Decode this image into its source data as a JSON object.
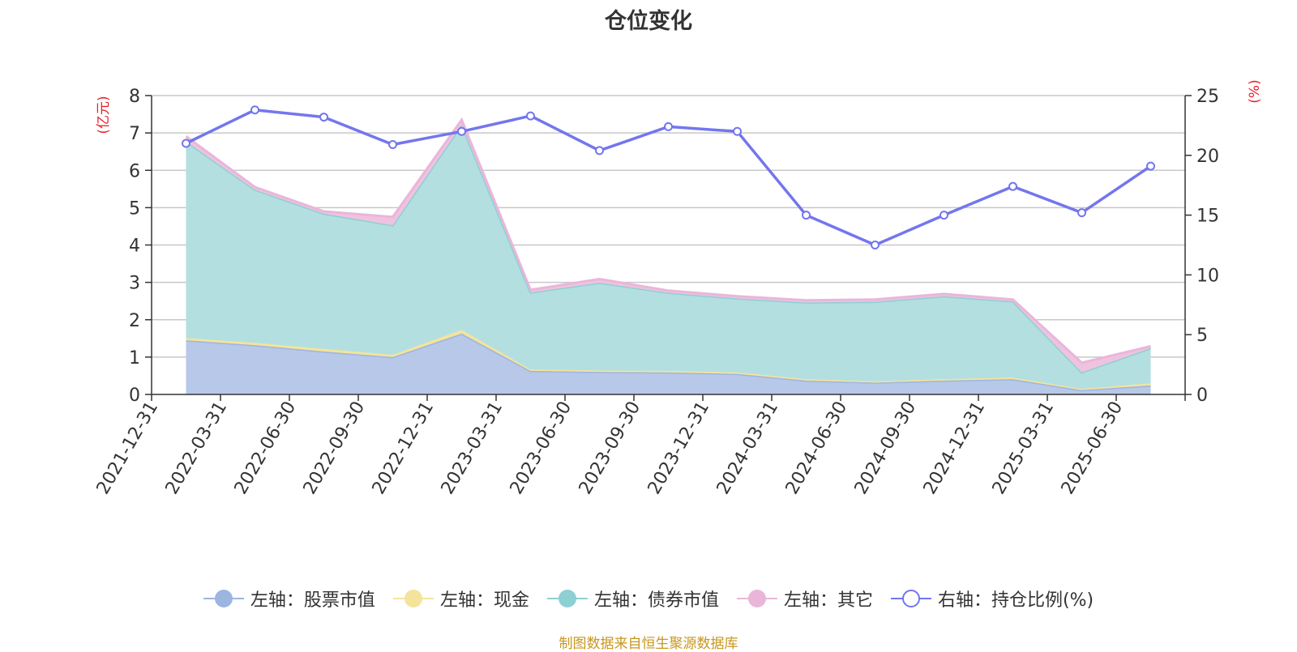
{
  "chart_data": {
    "type": "area",
    "title": "仓位变化",
    "source": "制图数据来自恒生聚源数据库",
    "left_axis": {
      "label": "(亿元)",
      "ylim": [
        0,
        8
      ],
      "ticks": [
        0,
        1,
        2,
        3,
        4,
        5,
        6,
        7,
        8
      ]
    },
    "right_axis": {
      "label": "(%)",
      "ylim": [
        0,
        25
      ],
      "ticks": [
        0,
        5,
        10,
        15,
        20,
        25
      ]
    },
    "categories": [
      "2021-12-31",
      "2022-03-31",
      "2022-06-30",
      "2022-09-30",
      "2022-12-31",
      "2023-03-31",
      "2023-06-30",
      "2023-09-30",
      "2023-12-31",
      "2024-03-31",
      "2024-06-30",
      "2024-09-30",
      "2024-12-31",
      "2025-03-31",
      "2025-06-30"
    ],
    "stacked_series": [
      {
        "name": "左轴：股票市值",
        "axis": "left",
        "color": "#9db5e1",
        "fill": "#b7c8e8",
        "values": [
          1.45,
          1.32,
          1.15,
          1.0,
          1.63,
          0.63,
          0.6,
          0.59,
          0.55,
          0.37,
          0.32,
          0.37,
          0.41,
          0.12,
          0.24
        ]
      },
      {
        "name": "左轴：现金",
        "axis": "left",
        "color": "#f4e39b",
        "fill": "#f4e39b",
        "values": [
          0.06,
          0.06,
          0.07,
          0.06,
          0.1,
          0.04,
          0.04,
          0.04,
          0.04,
          0.04,
          0.03,
          0.04,
          0.04,
          0.03,
          0.06
        ]
      },
      {
        "name": "左轴：债券市值",
        "axis": "left",
        "color": "#8dd0d3",
        "fill": "#b3dfe0",
        "values": [
          5.26,
          4.1,
          3.62,
          3.47,
          5.49,
          2.06,
          2.35,
          2.09,
          1.98,
          2.05,
          2.13,
          2.22,
          2.04,
          0.44,
          0.94
        ]
      },
      {
        "name": "左轴：其它",
        "axis": "left",
        "color": "#e9b6d9",
        "fill": "#efc3e0",
        "values": [
          0.14,
          0.07,
          0.06,
          0.22,
          0.13,
          0.07,
          0.1,
          0.06,
          0.06,
          0.06,
          0.06,
          0.06,
          0.05,
          0.26,
          0.05
        ]
      }
    ],
    "line_series": [
      {
        "name": "右轴：持仓比例(%)",
        "axis": "right",
        "color": "#7376ee",
        "values": [
          21.0,
          23.8,
          23.2,
          20.9,
          22.0,
          23.3,
          20.4,
          22.4,
          22.0,
          15.0,
          12.5,
          15.0,
          17.4,
          15.2,
          19.1
        ]
      }
    ],
    "grid": true,
    "legend_position": "bottom"
  }
}
